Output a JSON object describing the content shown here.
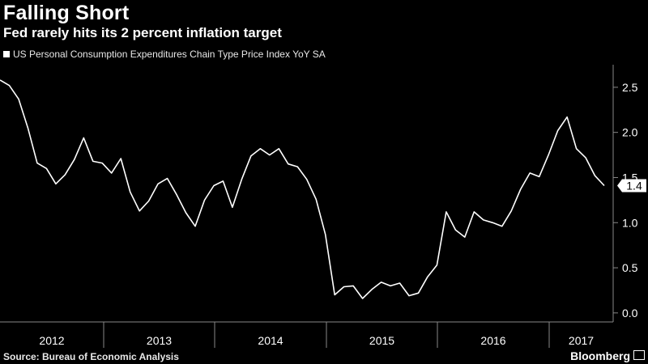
{
  "header": {
    "title": "Falling Short",
    "subtitle": "Fed rarely hits its 2 percent inflation target",
    "legend_label": "US Personal Consumption Expenditures Chain Type Price Index YoY SA"
  },
  "footer": {
    "source": "Source: Bureau of Economic Analysis",
    "brand": "Bloomberg"
  },
  "colors": {
    "background": "#000000",
    "line": "#ffffff",
    "axis": "#888888"
  },
  "chart_data": {
    "type": "line",
    "title": "Falling Short",
    "subtitle": "Fed rarely hits its 2 percent inflation target",
    "series": [
      {
        "name": "US Personal Consumption Expenditures Chain Type Price Index YoY SA",
        "color": "#ffffff",
        "x_start": "2011-11",
        "frequency": "monthly",
        "values": [
          2.58,
          2.52,
          2.37,
          2.05,
          1.66,
          1.6,
          1.43,
          1.53,
          1.7,
          1.94,
          1.68,
          1.66,
          1.55,
          1.71,
          1.34,
          1.13,
          1.24,
          1.43,
          1.49,
          1.31,
          1.11,
          0.96,
          1.25,
          1.41,
          1.46,
          1.17,
          1.48,
          1.74,
          1.82,
          1.75,
          1.82,
          1.65,
          1.62,
          1.48,
          1.26,
          0.87,
          0.2,
          0.29,
          0.3,
          0.16,
          0.26,
          0.34,
          0.3,
          0.33,
          0.19,
          0.22,
          0.4,
          0.53,
          1.12,
          0.92,
          0.84,
          1.12,
          1.03,
          1.0,
          0.96,
          1.13,
          1.37,
          1.55,
          1.51,
          1.75,
          2.02,
          2.17,
          1.82,
          1.72,
          1.52,
          1.41
        ]
      }
    ],
    "x_axis_labels": [
      "2012",
      "2013",
      "2014",
      "2015",
      "2016",
      "2017"
    ],
    "y_ticks": [
      0.0,
      0.5,
      1.0,
      1.5,
      2.0,
      2.5
    ],
    "ylim": [
      -0.1,
      2.75
    ],
    "last_value_label": "1.4",
    "grid": false,
    "y_axis_side": "right"
  }
}
